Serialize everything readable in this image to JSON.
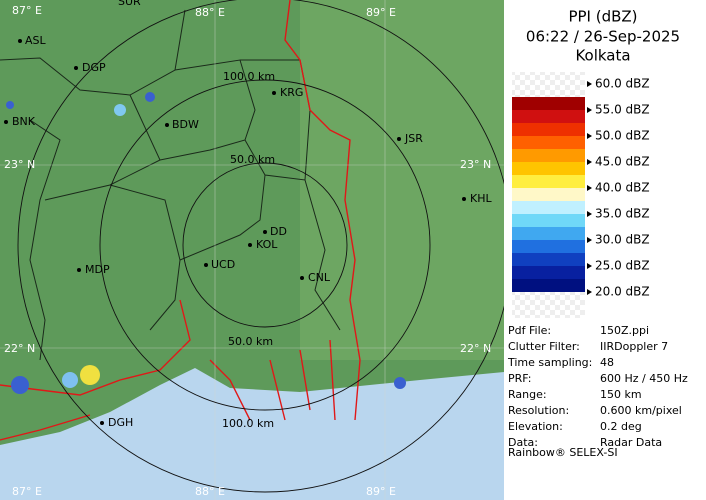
{
  "panel": {
    "title": "PPI (dBZ)",
    "datetime": "06:22 / 26-Sep-2025",
    "station": "Kolkata",
    "legend": [
      "60.0 dBZ",
      "55.0 dBZ",
      "50.0 dBZ",
      "45.0 dBZ",
      "40.0 dBZ",
      "35.0 dBZ",
      "30.0 dBZ",
      "25.0 dBZ",
      "20.0 dBZ"
    ],
    "info": [
      [
        "Pdf File:",
        "150Z.ppi"
      ],
      [
        "Clutter Filter:",
        "IIRDoppler 7"
      ],
      [
        "Time sampling:",
        "48"
      ],
      [
        "PRF:",
        "600 Hz / 450 Hz"
      ],
      [
        "Range:",
        "150 km"
      ],
      [
        "Resolution:",
        "0.600 km/pixel"
      ],
      [
        "Elevation:",
        "0.2 deg"
      ],
      [
        "Data:",
        "Radar Data"
      ]
    ],
    "footer": "Rainbow® SELEX-SI"
  },
  "map": {
    "grid_labels": [
      "87° E",
      "88° E",
      "89° E",
      "23° N",
      "23° N",
      "22° N",
      "22° N",
      "87° E",
      "88° E",
      "89° E"
    ],
    "places": [
      "SUR",
      "ASL",
      "DGP",
      "BNK",
      "BDW",
      "KRG",
      "JSR",
      "KHL",
      "DD",
      "KOL",
      "UCD",
      "MDP",
      "CNL",
      "DGH"
    ],
    "range_labels": [
      "100.0 km",
      "50.0 km",
      "50.0 km",
      "100.0 km"
    ]
  }
}
